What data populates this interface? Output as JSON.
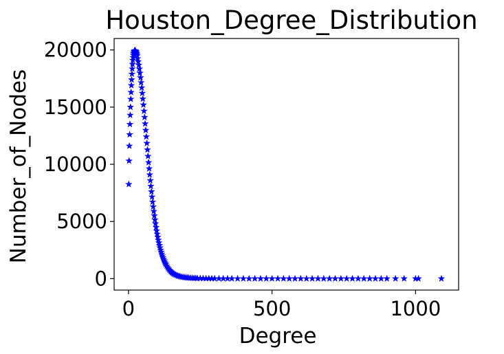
{
  "chart_data": {
    "type": "scatter",
    "title": "Houston_Degree_Distribution",
    "xlabel": "Degree",
    "ylabel": "Number_of_Nodes",
    "xlim": [
      -50,
      1150
    ],
    "ylim": [
      -1000,
      21000
    ],
    "xticks": [
      0,
      500,
      1000
    ],
    "yticks": [
      0,
      5000,
      10000,
      15000,
      20000
    ],
    "xtick_labels": [
      "0",
      "500",
      "1000"
    ],
    "ytick_labels": [
      "0",
      "5000",
      "10000",
      "15000",
      "20000"
    ],
    "grid": false,
    "marker": "star",
    "color": "#0000ff",
    "series": [
      {
        "x": [
          1,
          2,
          3,
          4,
          5,
          6,
          7,
          8,
          9,
          10,
          11,
          12,
          13,
          14,
          15,
          16,
          17,
          18,
          19,
          20,
          21,
          22,
          23,
          24,
          25,
          26,
          27,
          28,
          29,
          30,
          32,
          34,
          36,
          38,
          40,
          42,
          44,
          46,
          48,
          50,
          52,
          54,
          56,
          58,
          60,
          62,
          64,
          66,
          68,
          70,
          72,
          74,
          76,
          78,
          80,
          82,
          84,
          86,
          88,
          90,
          92,
          94,
          96,
          98,
          100,
          102,
          104,
          106,
          108,
          110,
          112,
          114,
          116,
          118,
          120,
          122,
          124,
          126,
          128,
          130,
          133,
          136,
          139,
          142,
          145,
          148,
          151,
          154,
          157,
          160,
          164,
          168,
          172,
          176,
          180,
          185,
          190,
          195,
          200,
          205,
          210,
          216,
          222,
          228,
          234,
          240,
          250,
          260,
          270,
          280,
          290,
          300,
          315,
          330,
          345,
          360,
          380,
          400,
          420,
          440,
          460,
          480,
          500,
          520,
          540,
          560,
          580,
          600,
          620,
          640,
          660,
          680,
          700,
          720,
          740,
          760,
          780,
          800,
          820,
          840,
          860,
          880,
          900,
          930,
          960,
          1000,
          1010,
          1090
        ],
        "y": [
          8250,
          10300,
          11600,
          12600,
          13500,
          14300,
          15000,
          15700,
          16300,
          16900,
          17400,
          17900,
          18350,
          18750,
          19100,
          19350,
          19550,
          19700,
          19800,
          19880,
          19930,
          19950,
          19940,
          19920,
          19880,
          19830,
          19760,
          19680,
          19590,
          19490,
          19250,
          18980,
          18680,
          18340,
          17980,
          17580,
          17150,
          16700,
          16220,
          15720,
          15200,
          14660,
          14110,
          13550,
          12980,
          12410,
          11840,
          11270,
          10710,
          10160,
          9620,
          9090,
          8580,
          8090,
          7610,
          7150,
          6710,
          6290,
          5890,
          5510,
          5150,
          4810,
          4490,
          4190,
          3900,
          3630,
          3380,
          3140,
          2920,
          2710,
          2510,
          2330,
          2160,
          2000,
          1850,
          1710,
          1580,
          1460,
          1350,
          1250,
          1110,
          985,
          875,
          775,
          690,
          610,
          545,
          485,
          430,
          385,
          330,
          285,
          245,
          212,
          185,
          155,
          130,
          110,
          95,
          82,
          70,
          60,
          52,
          45,
          39,
          34,
          28,
          23,
          19,
          16,
          13,
          11,
          9,
          7,
          6,
          5,
          4,
          3,
          3,
          2,
          2,
          2,
          1,
          1,
          1,
          1,
          1,
          1,
          1,
          1,
          1,
          1,
          1,
          1,
          1,
          1,
          1,
          1,
          1,
          1,
          1,
          1,
          1,
          1,
          1,
          1,
          1,
          1
        ]
      }
    ]
  }
}
